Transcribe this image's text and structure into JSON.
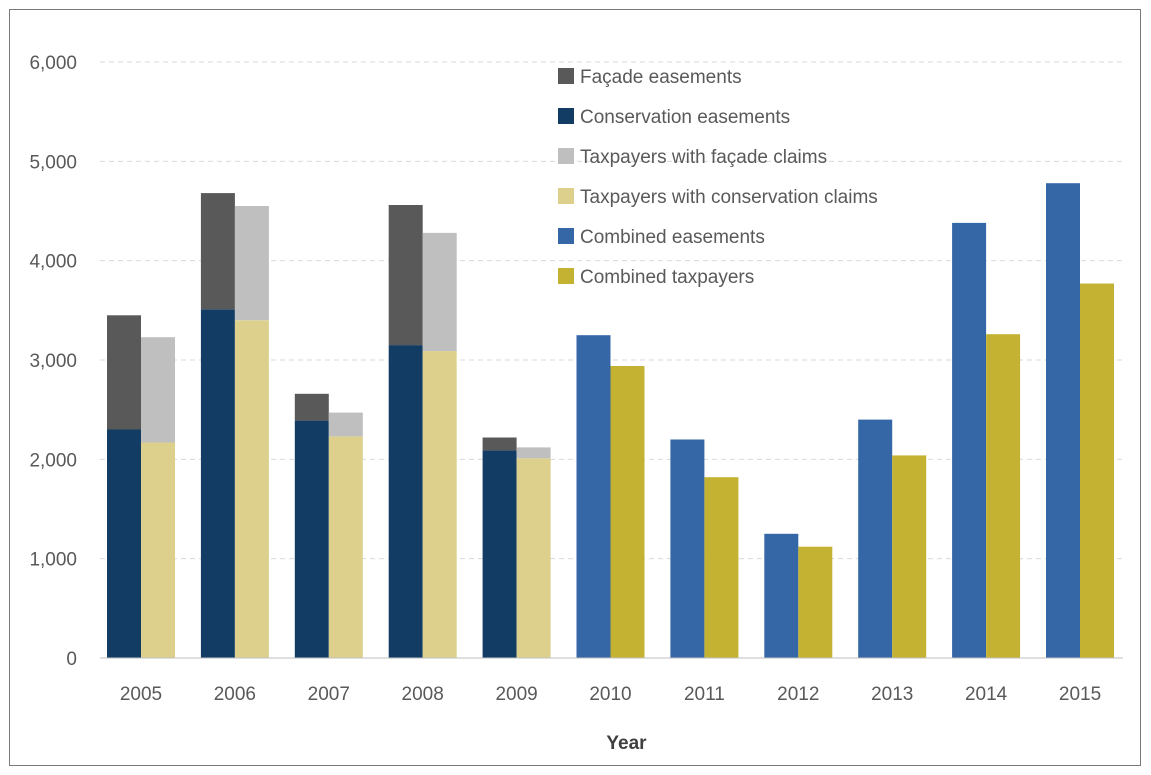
{
  "chart_data": {
    "type": "bar",
    "title": "",
    "xlabel": "Year",
    "ylabel": "",
    "ylim": [
      0,
      6000
    ],
    "yticks": [
      0,
      1000,
      2000,
      3000,
      4000,
      5000,
      6000
    ],
    "ytick_labels": [
      "0",
      "1,000",
      "2,000",
      "3,000",
      "4,000",
      "5,000",
      "6,000"
    ],
    "grid": true,
    "legend_placement": "top-center",
    "categories": [
      "2005",
      "2006",
      "2007",
      "2008",
      "2009",
      "2010",
      "2011",
      "2012",
      "2013",
      "2014",
      "2015"
    ],
    "series": [
      {
        "name": "Façade easements",
        "color": "#595959",
        "stack": "easements",
        "values": [
          1150,
          1170,
          270,
          1410,
          130,
          0,
          0,
          0,
          0,
          0,
          0
        ]
      },
      {
        "name": "Conservation easements",
        "color": "#123c64",
        "stack": "easements",
        "values": [
          2300,
          3510,
          2390,
          3150,
          2090,
          0,
          0,
          0,
          0,
          0,
          0
        ]
      },
      {
        "name": "Taxpayers with façade claims",
        "color": "#bfbfbf",
        "stack": "taxpayers",
        "values": [
          1060,
          1150,
          240,
          1190,
          110,
          0,
          0,
          0,
          0,
          0,
          0
        ]
      },
      {
        "name": "Taxpayers with conservation claims",
        "color": "#ddd08c",
        "stack": "taxpayers",
        "values": [
          2170,
          3400,
          2230,
          3090,
          2010,
          0,
          0,
          0,
          0,
          0,
          0
        ]
      },
      {
        "name": "Combined easements",
        "color": "#3566a6",
        "stack": "easements",
        "values": [
          0,
          0,
          0,
          0,
          0,
          3250,
          2200,
          1250,
          2400,
          4380,
          4780
        ]
      },
      {
        "name": "Combined taxpayers",
        "color": "#c4b232",
        "stack": "taxpayers",
        "values": [
          0,
          0,
          0,
          0,
          0,
          2940,
          1820,
          1120,
          2040,
          3260,
          3770
        ]
      }
    ],
    "stack_order": {
      "easements": [
        "Conservation easements",
        "Façade easements",
        "Combined easements"
      ],
      "taxpayers": [
        "Taxpayers with conservation claims",
        "Taxpayers with façade claims",
        "Combined taxpayers"
      ]
    }
  }
}
